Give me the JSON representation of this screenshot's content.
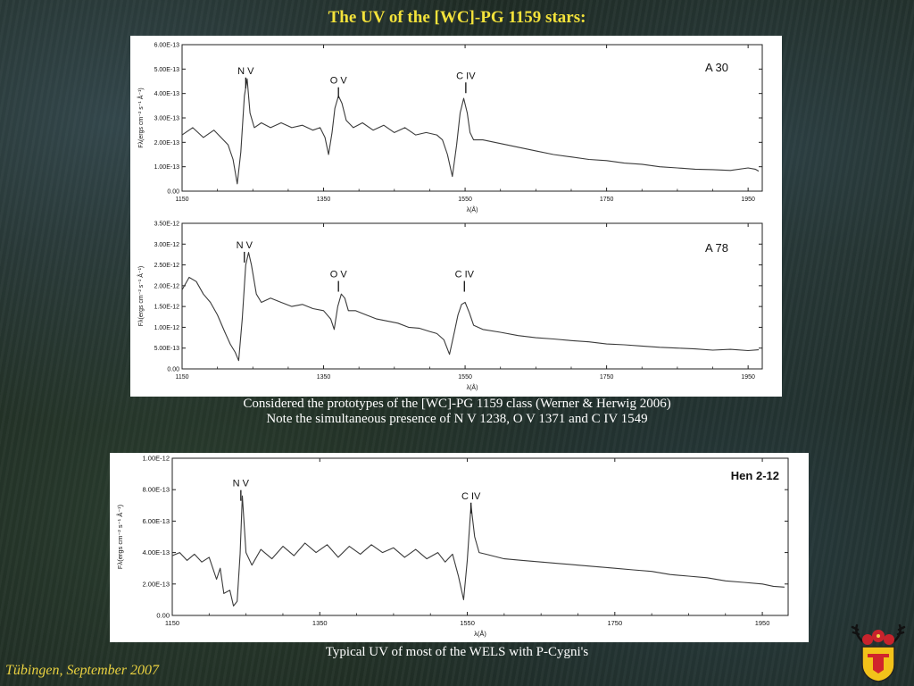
{
  "title": "The UV of the [WC]-PG 1159 stars:",
  "caption_top": [
    "Considered the prototypes of the [WC]-PG 1159 class (Werner & Herwig 2006)",
    "Note the simultaneous presence of N V 1238, O V 1371 and C IV 1549"
  ],
  "caption_bottom": "Typical UV of most of the WELS with P-Cygni's",
  "footer": "Tübingen, September 2007",
  "colors": {
    "title": "#f3e23a",
    "footer": "#e8d040",
    "spectrum": "#3a3a3a"
  },
  "chart_data": [
    {
      "type": "line",
      "star_label": "A 30",
      "xlabel": "λ(Å)",
      "ylabel": "Fλ(ergs cm⁻² s⁻¹ Å⁻¹)",
      "xlim": [
        1150,
        1970
      ],
      "ylim": [
        0,
        6e-13
      ],
      "xticks": [
        1150,
        1350,
        1550,
        1750,
        1950
      ],
      "yticks": [
        0,
        1e-13,
        2e-13,
        3e-13,
        4e-13,
        5e-13,
        6e-13
      ],
      "ytick_labels": [
        "0.00",
        "1.00E-13",
        "2.00E-13",
        "3.00E-13",
        "4.00E-13",
        "5.00E-13",
        "6.00E-13"
      ],
      "lines": [
        {
          "label": "N V",
          "wavelength": 1240,
          "label_flux": 4.8e-13
        },
        {
          "label": "O V",
          "wavelength": 1371,
          "label_flux": 4.4e-13
        },
        {
          "label": "C IV",
          "wavelength": 1551,
          "label_flux": 4.6e-13
        }
      ],
      "series": [
        {
          "x": [
            1150,
            1165,
            1180,
            1195,
            1205,
            1215,
            1222,
            1228,
            1233,
            1238,
            1242,
            1246,
            1252,
            1262,
            1275,
            1290,
            1305,
            1320,
            1335,
            1345,
            1352,
            1357,
            1362,
            1366,
            1371,
            1376,
            1382,
            1392,
            1405,
            1420,
            1435,
            1450,
            1465,
            1480,
            1495,
            1510,
            1518,
            1525,
            1532,
            1538,
            1543,
            1548,
            1553,
            1557,
            1562,
            1575,
            1600,
            1625,
            1650,
            1675,
            1700,
            1725,
            1750,
            1775,
            1800,
            1825,
            1850,
            1875,
            1900,
            1925,
            1950,
            1960,
            1965
          ],
          "y": [
            2.3e-13,
            2.6e-13,
            2.2e-13,
            2.5e-13,
            2.2e-13,
            1.9e-13,
            1.3e-13,
            3e-14,
            1.6e-13,
            3.9e-13,
            4.6e-13,
            3.2e-13,
            2.6e-13,
            2.8e-13,
            2.6e-13,
            2.8e-13,
            2.6e-13,
            2.7e-13,
            2.5e-13,
            2.6e-13,
            2.2e-13,
            1.5e-13,
            2.4e-13,
            3.4e-13,
            3.9e-13,
            3.6e-13,
            2.9e-13,
            2.6e-13,
            2.8e-13,
            2.5e-13,
            2.7e-13,
            2.4e-13,
            2.6e-13,
            2.3e-13,
            2.4e-13,
            2.3e-13,
            2.1e-13,
            1.5e-13,
            6e-14,
            1.9e-13,
            3.2e-13,
            3.8e-13,
            3.2e-13,
            2.4e-13,
            2.1e-13,
            2.1e-13,
            1.95e-13,
            1.8e-13,
            1.65e-13,
            1.5e-13,
            1.4e-13,
            1.3e-13,
            1.25e-13,
            1.15e-13,
            1.1e-13,
            1e-13,
            9.5e-14,
            9e-14,
            8.8e-14,
            8.5e-14,
            9.5e-14,
            9e-14,
            8.2e-14
          ]
        }
      ]
    },
    {
      "type": "line",
      "star_label": "A 78",
      "xlabel": "λ(Å)",
      "ylabel": "Fλ(ergs cm⁻² s⁻¹ Å⁻¹)",
      "xlim": [
        1150,
        1970
      ],
      "ylim": [
        0,
        3.5e-12
      ],
      "xticks": [
        1150,
        1350,
        1550,
        1750,
        1950
      ],
      "yticks": [
        0,
        5e-13,
        1e-12,
        1.5e-12,
        2e-12,
        2.5e-12,
        3e-12,
        3.5e-12
      ],
      "ytick_labels": [
        "0.00",
        "5.00E-13",
        "1.00E-12",
        "1.50E-12",
        "2.00E-12",
        "2.50E-12",
        "3.00E-12",
        "3.50E-12"
      ],
      "lines": [
        {
          "label": "N V",
          "wavelength": 1238,
          "label_flux": 2.9e-12
        },
        {
          "label": "O V",
          "wavelength": 1371,
          "label_flux": 2.2e-12
        },
        {
          "label": "C IV",
          "wavelength": 1549,
          "label_flux": 2.2e-12
        }
      ],
      "series": [
        {
          "x": [
            1150,
            1160,
            1170,
            1180,
            1190,
            1200,
            1210,
            1218,
            1225,
            1230,
            1235,
            1240,
            1244,
            1248,
            1255,
            1262,
            1275,
            1290,
            1305,
            1320,
            1335,
            1350,
            1360,
            1365,
            1370,
            1375,
            1380,
            1385,
            1395,
            1410,
            1425,
            1440,
            1455,
            1470,
            1485,
            1500,
            1510,
            1520,
            1528,
            1535,
            1540,
            1545,
            1550,
            1556,
            1562,
            1575,
            1600,
            1625,
            1650,
            1675,
            1700,
            1725,
            1750,
            1775,
            1800,
            1825,
            1850,
            1875,
            1900,
            1925,
            1950,
            1965
          ],
          "y": [
            1.9e-12,
            2.2e-12,
            2.1e-12,
            1.8e-12,
            1.6e-12,
            1.3e-12,
            9e-13,
            6e-13,
            4e-13,
            2e-13,
            1.2e-12,
            2.5e-12,
            2.8e-12,
            2.5e-12,
            1.8e-12,
            1.6e-12,
            1.7e-12,
            1.6e-12,
            1.5e-12,
            1.55e-12,
            1.45e-12,
            1.4e-12,
            1.2e-12,
            9.5e-13,
            1.5e-12,
            1.8e-12,
            1.7e-12,
            1.4e-12,
            1.4e-12,
            1.3e-12,
            1.2e-12,
            1.15e-12,
            1.1e-12,
            1e-12,
            9.8e-13,
            9e-13,
            8.5e-13,
            7e-13,
            3.5e-13,
            9e-13,
            1.3e-12,
            1.55e-12,
            1.6e-12,
            1.35e-12,
            1.05e-12,
            9.5e-13,
            8.8e-13,
            8e-13,
            7.5e-13,
            7.2e-13,
            6.8e-13,
            6.5e-13,
            6e-13,
            5.8e-13,
            5.5e-13,
            5.2e-13,
            5e-13,
            4.8e-13,
            4.5e-13,
            4.7e-13,
            4.4e-13,
            4.6e-13
          ]
        }
      ]
    },
    {
      "type": "line",
      "star_label": "Hen 2-12",
      "xlabel": "λ(Å)",
      "ylabel": "Fλ(ergs cm⁻² s⁻¹ Å⁻¹)",
      "xlim": [
        1150,
        1985
      ],
      "ylim": [
        0,
        1e-12
      ],
      "xticks": [
        1150,
        1350,
        1550,
        1750,
        1950
      ],
      "yticks": [
        0,
        2e-13,
        4e-13,
        6e-13,
        8e-13,
        1e-12
      ],
      "ytick_labels": [
        "0.00",
        "2.00E-13",
        "4.00E-13",
        "6.00E-13",
        "8.00E-13",
        "1.00E-12"
      ],
      "lines": [
        {
          "label": "N V",
          "wavelength": 1243,
          "label_flux": 8.2e-13
        },
        {
          "label": "C IV",
          "wavelength": 1555,
          "label_flux": 7.4e-13
        }
      ],
      "series": [
        {
          "x": [
            1150,
            1160,
            1170,
            1180,
            1190,
            1200,
            1210,
            1215,
            1220,
            1228,
            1233,
            1238,
            1242,
            1245,
            1250,
            1258,
            1270,
            1285,
            1300,
            1315,
            1330,
            1345,
            1360,
            1375,
            1390,
            1405,
            1420,
            1435,
            1450,
            1465,
            1480,
            1495,
            1510,
            1520,
            1530,
            1538,
            1545,
            1550,
            1555,
            1560,
            1566,
            1575,
            1600,
            1625,
            1650,
            1675,
            1700,
            1725,
            1750,
            1775,
            1800,
            1825,
            1850,
            1875,
            1900,
            1925,
            1950,
            1965,
            1980
          ],
          "y": [
            3.8e-13,
            4e-13,
            3.5e-13,
            3.9e-13,
            3.4e-13,
            3.7e-13,
            2.3e-13,
            3e-13,
            1.4e-13,
            1.6e-13,
            6e-14,
            9e-14,
            3.9e-13,
            7.6e-13,
            4e-13,
            3.2e-13,
            4.2e-13,
            3.6e-13,
            4.4e-13,
            3.8e-13,
            4.6e-13,
            4e-13,
            4.5e-13,
            3.7e-13,
            4.4e-13,
            3.9e-13,
            4.5e-13,
            4e-13,
            4.3e-13,
            3.7e-13,
            4.2e-13,
            3.6e-13,
            4e-13,
            3.4e-13,
            3.9e-13,
            2.5e-13,
            1e-13,
            3.5e-13,
            7e-13,
            5e-13,
            4e-13,
            3.9e-13,
            3.6e-13,
            3.5e-13,
            3.4e-13,
            3.3e-13,
            3.2e-13,
            3.1e-13,
            3e-13,
            2.9e-13,
            2.8e-13,
            2.6e-13,
            2.5e-13,
            2.4e-13,
            2.2e-13,
            2.1e-13,
            2e-13,
            1.85e-13,
            1.8e-13
          ]
        }
      ]
    }
  ]
}
